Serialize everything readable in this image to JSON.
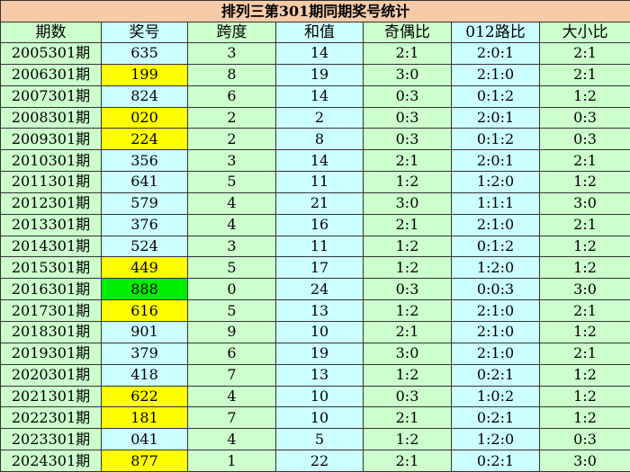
{
  "title": "排列三第301期同期奖号统计",
  "colors": {
    "title_bg": "#f8cba8",
    "col_green": "#ccffcc",
    "col_blue": "#ccffff",
    "highlight_pair": "#ffff00",
    "highlight_triple": "#00ee00"
  },
  "headers": [
    "期数",
    "奖号",
    "跨度",
    "和值",
    "奇偶比",
    "012路比",
    "大小比"
  ],
  "rows": [
    {
      "issue": "2005301期",
      "number": "635",
      "span": "3",
      "sum": "14",
      "odd_even": "2:1",
      "road012": "2:0:1",
      "big_small": "2:1",
      "highlight": ""
    },
    {
      "issue": "2006301期",
      "number": "199",
      "span": "8",
      "sum": "19",
      "odd_even": "3:0",
      "road012": "2:1:0",
      "big_small": "2:1",
      "highlight": "yellow"
    },
    {
      "issue": "2007301期",
      "number": "824",
      "span": "6",
      "sum": "14",
      "odd_even": "0:3",
      "road012": "0:1:2",
      "big_small": "1:2",
      "highlight": ""
    },
    {
      "issue": "2008301期",
      "number": "020",
      "span": "2",
      "sum": "2",
      "odd_even": "0:3",
      "road012": "2:0:1",
      "big_small": "0:3",
      "highlight": "yellow"
    },
    {
      "issue": "2009301期",
      "number": "224",
      "span": "2",
      "sum": "8",
      "odd_even": "0:3",
      "road012": "0:1:2",
      "big_small": "0:3",
      "highlight": "yellow"
    },
    {
      "issue": "2010301期",
      "number": "356",
      "span": "3",
      "sum": "14",
      "odd_even": "2:1",
      "road012": "2:0:1",
      "big_small": "2:1",
      "highlight": ""
    },
    {
      "issue": "2011301期",
      "number": "641",
      "span": "5",
      "sum": "11",
      "odd_even": "1:2",
      "road012": "1:2:0",
      "big_small": "1:2",
      "highlight": ""
    },
    {
      "issue": "2012301期",
      "number": "579",
      "span": "4",
      "sum": "21",
      "odd_even": "3:0",
      "road012": "1:1:1",
      "big_small": "3:0",
      "highlight": ""
    },
    {
      "issue": "2013301期",
      "number": "376",
      "span": "4",
      "sum": "16",
      "odd_even": "2:1",
      "road012": "2:1:0",
      "big_small": "2:1",
      "highlight": ""
    },
    {
      "issue": "2014301期",
      "number": "524",
      "span": "3",
      "sum": "11",
      "odd_even": "1:2",
      "road012": "0:1:2",
      "big_small": "1:2",
      "highlight": ""
    },
    {
      "issue": "2015301期",
      "number": "449",
      "span": "5",
      "sum": "17",
      "odd_even": "1:2",
      "road012": "1:2:0",
      "big_small": "1:2",
      "highlight": "yellow"
    },
    {
      "issue": "2016301期",
      "number": "888",
      "span": "0",
      "sum": "24",
      "odd_even": "0:3",
      "road012": "0:0:3",
      "big_small": "3:0",
      "highlight": "green"
    },
    {
      "issue": "2017301期",
      "number": "616",
      "span": "5",
      "sum": "13",
      "odd_even": "1:2",
      "road012": "2:1:0",
      "big_small": "2:1",
      "highlight": "yellow"
    },
    {
      "issue": "2018301期",
      "number": "901",
      "span": "9",
      "sum": "10",
      "odd_even": "2:1",
      "road012": "2:1:0",
      "big_small": "1:2",
      "highlight": ""
    },
    {
      "issue": "2019301期",
      "number": "379",
      "span": "6",
      "sum": "19",
      "odd_even": "3:0",
      "road012": "2:1:0",
      "big_small": "2:1",
      "highlight": ""
    },
    {
      "issue": "2020301期",
      "number": "418",
      "span": "7",
      "sum": "13",
      "odd_even": "1:2",
      "road012": "0:2:1",
      "big_small": "1:2",
      "highlight": ""
    },
    {
      "issue": "2021301期",
      "number": "622",
      "span": "4",
      "sum": "10",
      "odd_even": "0:3",
      "road012": "1:0:2",
      "big_small": "1:2",
      "highlight": "yellow"
    },
    {
      "issue": "2022301期",
      "number": "181",
      "span": "7",
      "sum": "10",
      "odd_even": "2:1",
      "road012": "0:2:1",
      "big_small": "1:2",
      "highlight": "yellow"
    },
    {
      "issue": "2023301期",
      "number": "041",
      "span": "4",
      "sum": "5",
      "odd_even": "1:2",
      "road012": "1:2:0",
      "big_small": "0:3",
      "highlight": ""
    },
    {
      "issue": "2024301期",
      "number": "877",
      "span": "1",
      "sum": "22",
      "odd_even": "2:1",
      "road012": "0:2:1",
      "big_small": "3:0",
      "highlight": "yellow"
    }
  ]
}
